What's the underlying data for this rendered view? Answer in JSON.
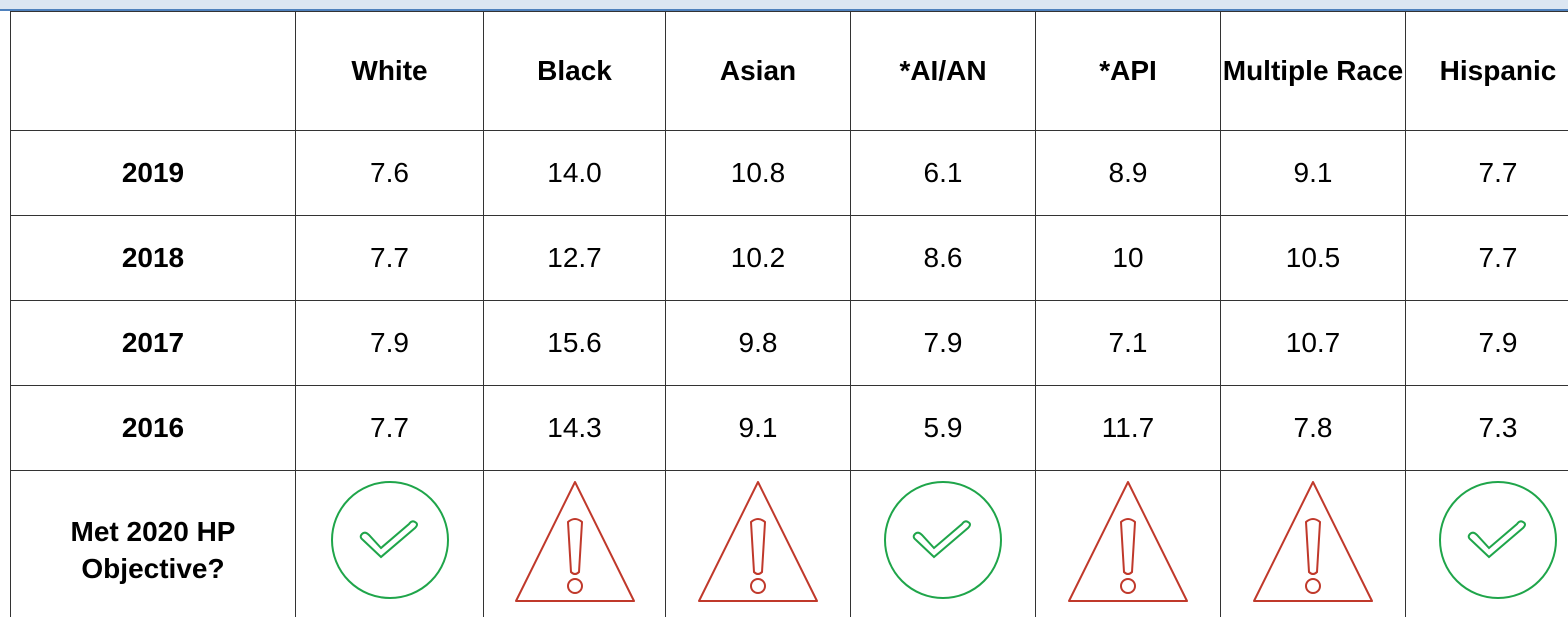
{
  "table": {
    "corner": "",
    "columns": [
      "White",
      "Black",
      "Asian",
      "*AI/AN",
      "*API",
      "Multiple Race",
      "Hispanic"
    ],
    "rows": [
      {
        "label": "2019",
        "cells": [
          "7.6",
          "14.0",
          "10.8",
          "6.1",
          "8.9",
          "9.1",
          "7.7"
        ]
      },
      {
        "label": "2018",
        "cells": [
          "7.7",
          "12.7",
          "10.2",
          "8.6",
          "10",
          "10.5",
          "7.7"
        ]
      },
      {
        "label": "2017",
        "cells": [
          "7.9",
          "15.6",
          "9.8",
          "7.9",
          "7.1",
          "10.7",
          "7.9"
        ]
      },
      {
        "label": "2016",
        "cells": [
          "7.7",
          "14.3",
          "9.1",
          "5.9",
          "11.7",
          "7.8",
          "7.3"
        ]
      }
    ],
    "objective": {
      "label": "Met 2020 HP Objective?",
      "met": [
        true,
        false,
        false,
        true,
        false,
        false,
        true
      ]
    }
  }
}
